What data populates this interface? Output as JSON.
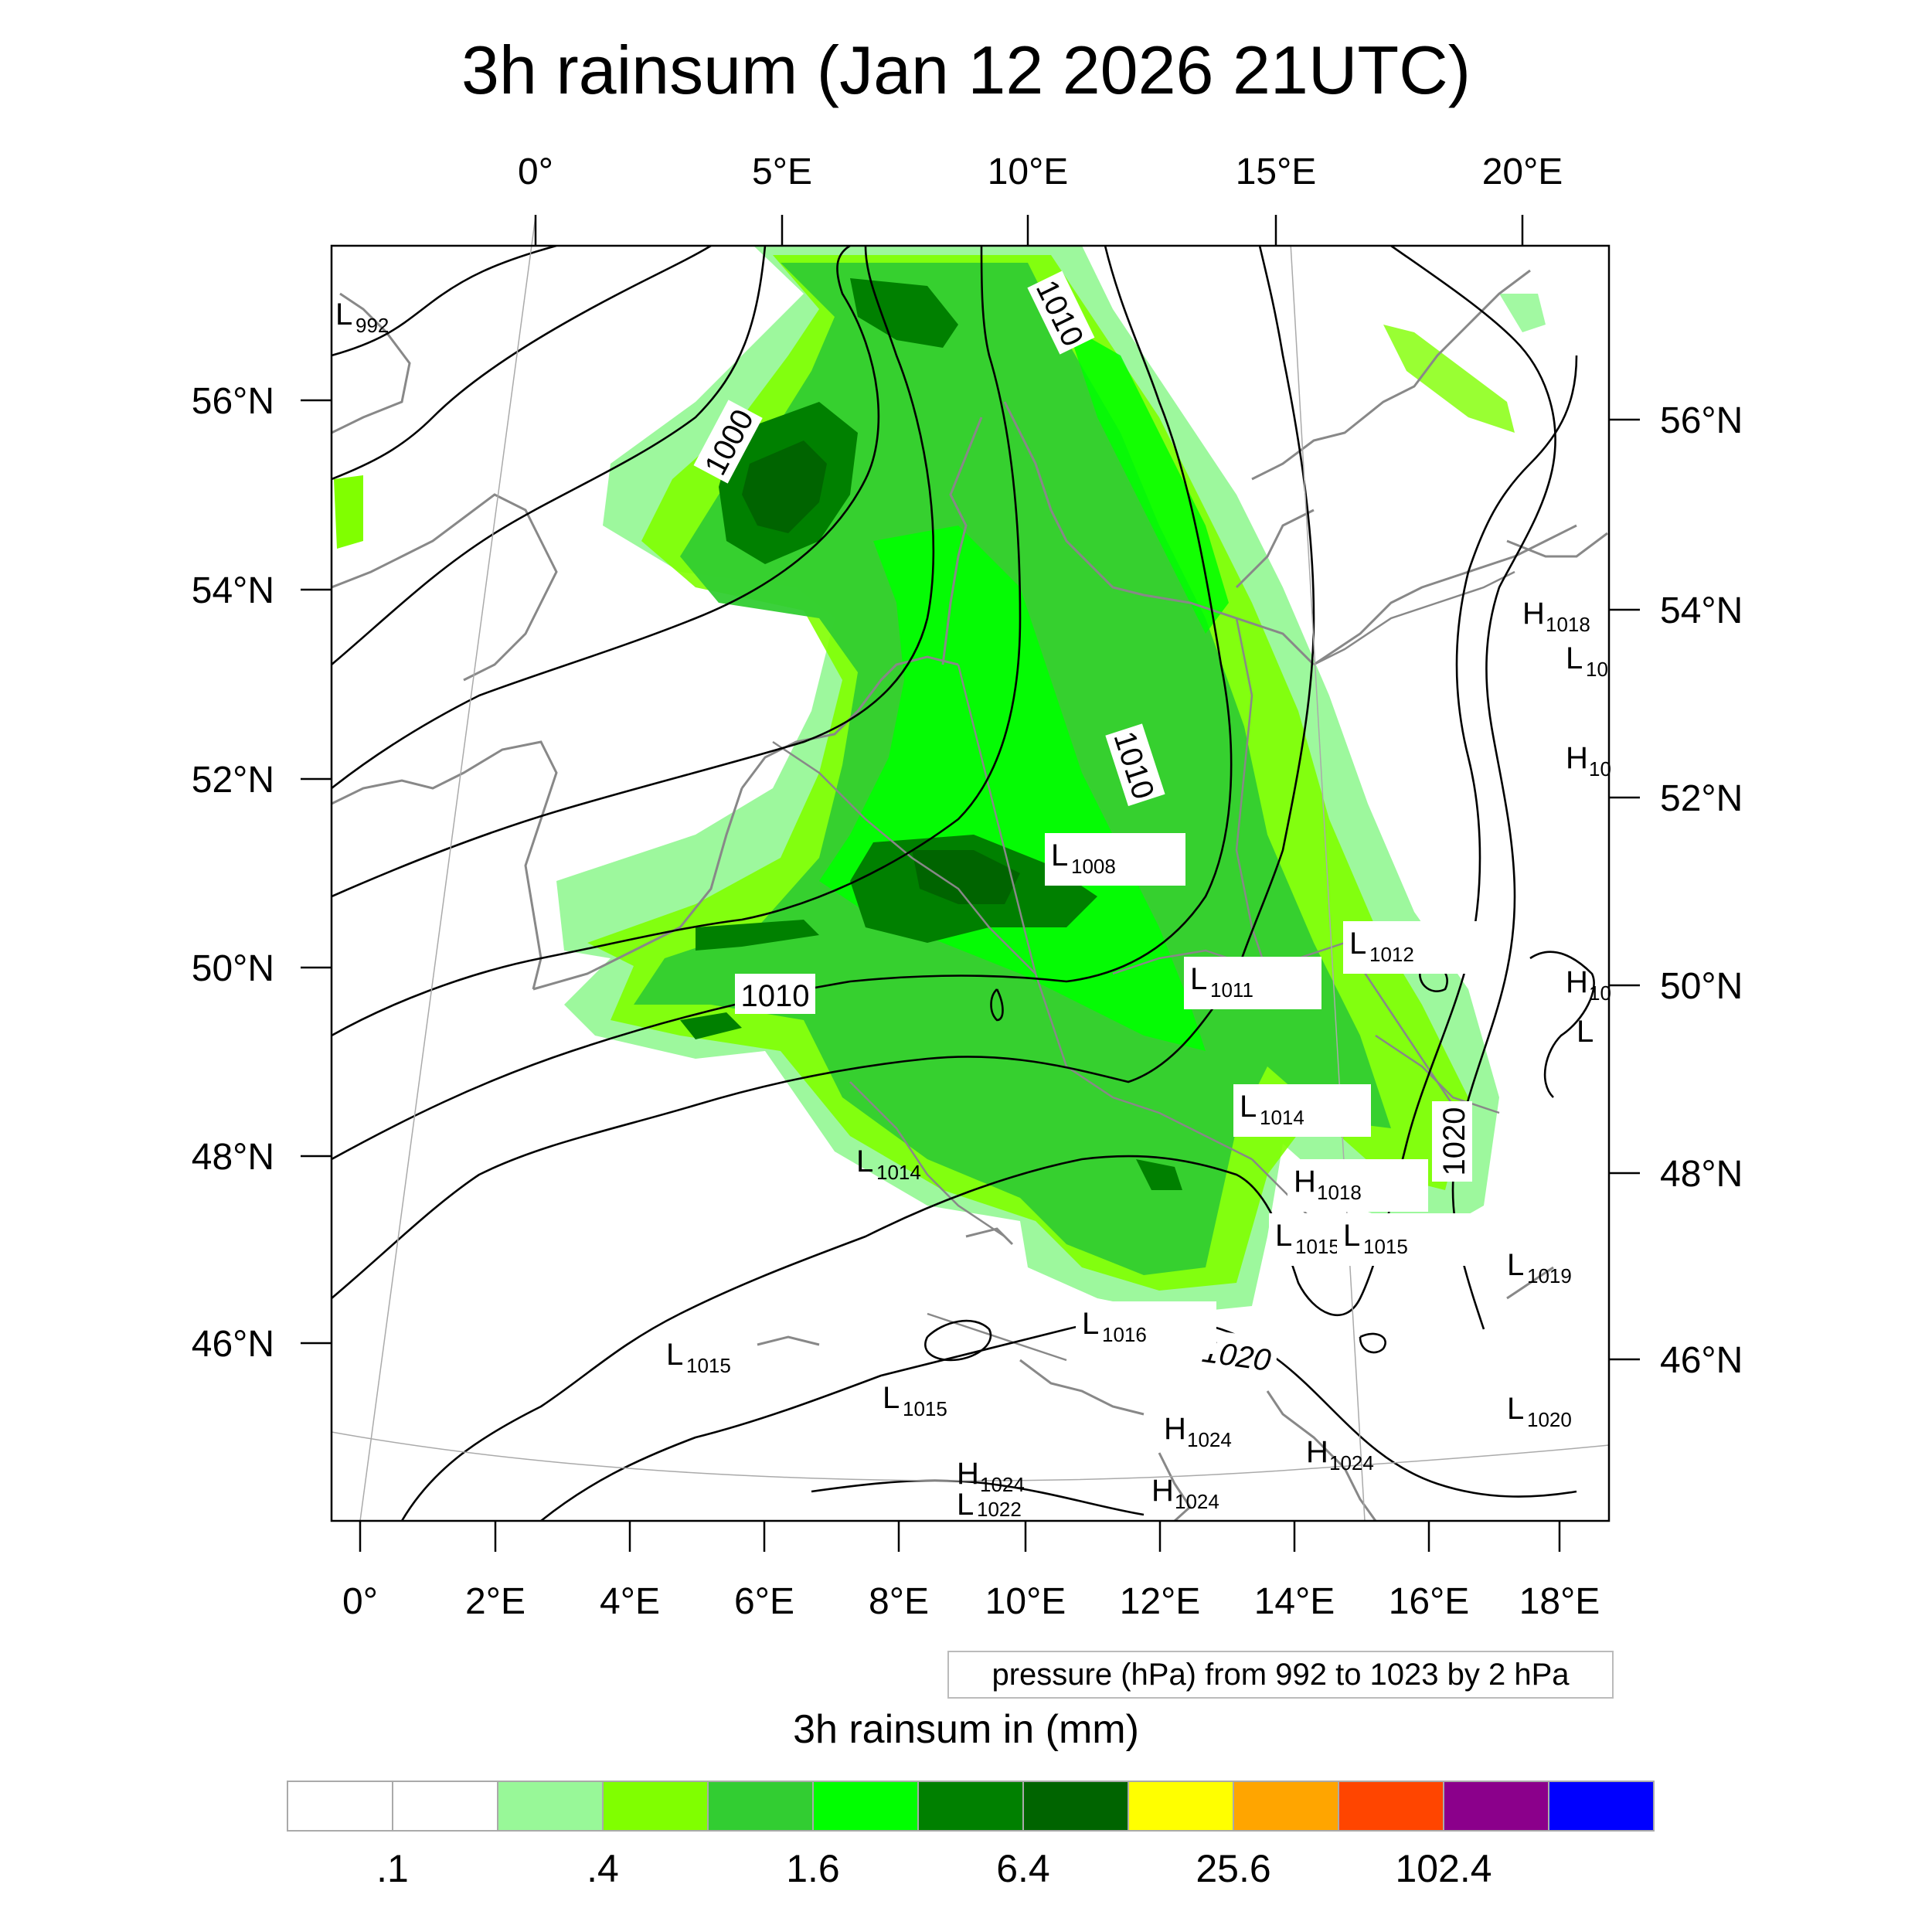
{
  "title": "3h rainsum (Jan 12 2026 21UTC)",
  "top_lon_labels": [
    "0°",
    "5°E",
    "10°E",
    "15°E",
    "20°E"
  ],
  "bottom_lon_labels": [
    "0°",
    "2°E",
    "4°E",
    "6°E",
    "8°E",
    "10°E",
    "12°E",
    "14°E",
    "16°E",
    "18°E"
  ],
  "left_lat_labels": [
    "56°N",
    "54°N",
    "52°N",
    "50°N",
    "48°N",
    "46°N"
  ],
  "right_lat_labels": [
    "56°N",
    "54°N",
    "52°N",
    "50°N",
    "48°N",
    "46°N"
  ],
  "contour_labels": [
    "1000",
    "1010",
    "1010",
    "1010",
    "1020",
    "1020"
  ],
  "pressure_centers": [
    {
      "kind": "L",
      "value": "992"
    },
    {
      "kind": "H",
      "value": "1018"
    },
    {
      "kind": "L",
      "value": "10"
    },
    {
      "kind": "H",
      "value": "10"
    },
    {
      "kind": "L",
      "value": "1008"
    },
    {
      "kind": "L",
      "value": "1012"
    },
    {
      "kind": "L",
      "value": "1011"
    },
    {
      "kind": "H",
      "value": "10"
    },
    {
      "kind": "L",
      "value": ""
    },
    {
      "kind": "L",
      "value": "1014"
    },
    {
      "kind": "L",
      "value": "1014"
    },
    {
      "kind": "H",
      "value": "1018"
    },
    {
      "kind": "L",
      "value": "1015"
    },
    {
      "kind": "L",
      "value": "1015"
    },
    {
      "kind": "L",
      "value": "1019"
    },
    {
      "kind": "L",
      "value": "1016"
    },
    {
      "kind": "L",
      "value": "1015"
    },
    {
      "kind": "L",
      "value": "1015"
    },
    {
      "kind": "L",
      "value": "1020"
    },
    {
      "kind": "H",
      "value": "1024"
    },
    {
      "kind": "H",
      "value": "1024"
    },
    {
      "kind": "H",
      "value": "1024"
    },
    {
      "kind": "H",
      "value": "1024"
    },
    {
      "kind": "L",
      "value": "1022"
    }
  ],
  "contour_note": "pressure (hPa) from 992 to 1023 by 2 hPa",
  "colorbar": {
    "title": "3h rainsum in (mm)",
    "colors": [
      "#ffffff",
      "#ffffff",
      "#98f898",
      "#80ff00",
      "#32cd32",
      "#00ff00",
      "#008000",
      "#006400",
      "#ffff00",
      "#ffa500",
      "#ff4500",
      "#8b008b",
      "#0000ff"
    ],
    "labels": [
      ".1",
      ".4",
      "1.6",
      "6.4",
      "25.6",
      "102.4"
    ]
  }
}
